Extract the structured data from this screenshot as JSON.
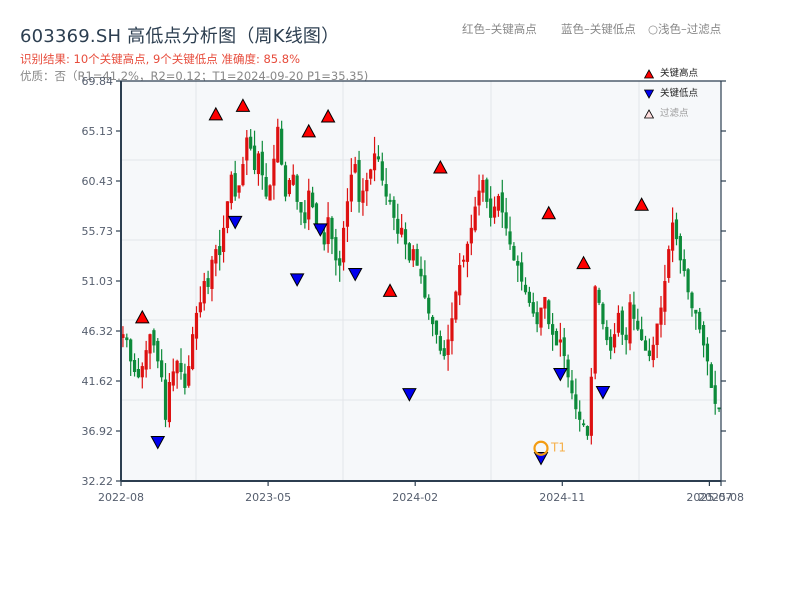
{
  "header": {
    "title": "603369.SH 高低点分析图（周K线图）",
    "subtitle": "识别结果: 10个关键高点, 9个关键低点   准确度: 85.8%",
    "meta": "优质：否（R1=41.2%，R2=0.12；T1=2024-09-20 P1=35.35)"
  },
  "top_legend": {
    "red": "红色–关键高点",
    "blue": "蓝色–关键低点",
    "filtered": "○浅色–过滤点"
  },
  "legend": {
    "items": [
      {
        "label": "关键高点",
        "marker": "triangle-up",
        "color": "#ff0000"
      },
      {
        "label": "关键低点",
        "marker": "triangle-down",
        "color": "#0000ff"
      },
      {
        "label": "过滤点",
        "marker": "triangle-up-light",
        "color": "#ffcccc"
      }
    ]
  },
  "colors": {
    "up": "#dd1111",
    "down": "#0d8a3a",
    "high_marker": "#ff0000",
    "low_marker": "#0000ee",
    "t1_circle": "#f39c12",
    "axis": "#2c3e50",
    "grid": "#e3e6ea",
    "plot_bg": "#f6f8fa"
  },
  "chart_data": {
    "type": "candlestick",
    "title": "603369.SH 高低点分析图（周K线图）",
    "xlabel": "",
    "ylabel": "",
    "ylim": [
      32.22,
      69.84
    ],
    "yticks": [
      "32.22",
      "36.92",
      "41.62",
      "46.32",
      "51.03",
      "55.73",
      "60.43",
      "65.13",
      "69.84"
    ],
    "xticks": [
      {
        "label": "2022-08",
        "pos": 0
      },
      {
        "label": "2023-05",
        "pos": 38
      },
      {
        "label": "2024-02",
        "pos": 76
      },
      {
        "label": "2024-11",
        "pos": 114
      },
      {
        "label": "2025-07",
        "pos": 152
      },
      {
        "label": "2025-08",
        "pos": 154
      }
    ],
    "grid": true,
    "n_bars": 155,
    "closes": [
      46.0,
      45.5,
      43.5,
      42.5,
      42.0,
      43.0,
      44.5,
      46.0,
      45.0,
      43.5,
      42.0,
      38.0,
      41.5,
      42.5,
      43.5,
      42.5,
      41.0,
      43.0,
      46.0,
      48.0,
      49.0,
      51.0,
      50.5,
      53.0,
      54.0,
      53.5,
      56.0,
      58.5,
      61.0,
      59.0,
      60.0,
      62.0,
      64.5,
      63.5,
      61.5,
      63.0,
      61.0,
      59.0,
      60.0,
      62.5,
      65.5,
      62.0,
      59.0,
      60.5,
      61.0,
      58.5,
      57.5,
      56.5,
      59.5,
      58.0,
      56.0,
      55.5,
      54.5,
      57.0,
      55.0,
      53.0,
      52.5,
      56.0,
      58.5,
      61.0,
      62.0,
      58.5,
      59.5,
      60.5,
      61.5,
      63.0,
      62.5,
      60.5,
      59.0,
      58.5,
      57.0,
      55.5,
      56.0,
      54.5,
      53.0,
      54.0,
      52.5,
      51.5,
      49.5,
      48.0,
      47.0,
      46.0,
      44.5,
      44.0,
      45.5,
      47.5,
      50.0,
      52.5,
      53.0,
      54.5,
      56.0,
      58.0,
      59.5,
      60.5,
      58.5,
      57.0,
      58.0,
      59.0,
      57.5,
      56.0,
      54.5,
      53.0,
      52.5,
      51.0,
      50.0,
      49.0,
      48.0,
      47.0,
      48.5,
      49.5,
      47.0,
      46.0,
      45.0,
      45.5,
      44.0,
      42.0,
      40.5,
      39.0,
      38.0,
      37.5,
      36.5,
      42.0,
      50.5,
      49.0,
      47.0,
      45.5,
      44.5,
      46.0,
      48.0,
      46.0,
      45.5,
      49.0,
      47.5,
      46.5,
      45.5,
      44.5,
      44.0,
      45.0,
      47.0,
      48.5,
      51.0,
      54.0,
      56.5,
      55.0,
      53.0,
      52.0,
      50.0,
      48.5,
      48.0,
      46.5,
      45.0,
      43.5,
      41.0,
      39.5,
      39.0,
      39.5,
      40.0
    ],
    "key_highs": [
      {
        "index": 5,
        "price": 46.9
      },
      {
        "index": 24,
        "price": 66.0
      },
      {
        "index": 31,
        "price": 66.8
      },
      {
        "index": 48,
        "price": 64.4
      },
      {
        "index": 53,
        "price": 65.8
      },
      {
        "index": 69,
        "price": 49.4
      },
      {
        "index": 82,
        "price": 61.0
      },
      {
        "index": 110,
        "price": 56.7
      },
      {
        "index": 119,
        "price": 52.0
      },
      {
        "index": 134,
        "price": 57.5
      }
    ],
    "key_lows": [
      {
        "index": 9,
        "price": 36.5
      },
      {
        "index": 29,
        "price": 57.2
      },
      {
        "index": 45,
        "price": 51.8
      },
      {
        "index": 51,
        "price": 56.5
      },
      {
        "index": 60,
        "price": 52.3
      },
      {
        "index": 74,
        "price": 41.0
      },
      {
        "index": 108,
        "price": 35.0
      },
      {
        "index": 113,
        "price": 42.9
      },
      {
        "index": 124,
        "price": 41.2
      }
    ],
    "annotations": [
      {
        "label": "T1",
        "index": 108,
        "price": 35.35,
        "date": "2024-09-20"
      }
    ]
  }
}
